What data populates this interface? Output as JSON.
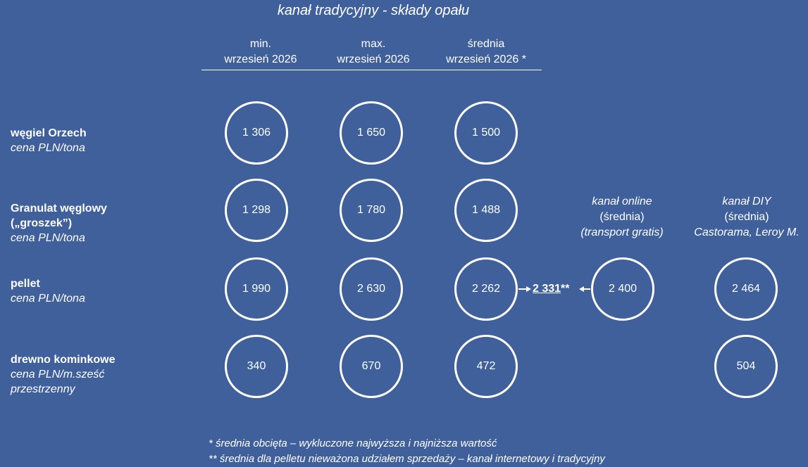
{
  "title": "kanał tradycyjny - składy opału",
  "columns": [
    {
      "line1": "min.",
      "line2": "wrzesień 2026"
    },
    {
      "line1": "max.",
      "line2": "wrzesień 2026"
    },
    {
      "line1": "średnia",
      "line2": "wrzesień 2026 *"
    }
  ],
  "side_columns": {
    "online": {
      "line1": "kanał online",
      "line2": "(średnia)",
      "line3": "(transport gratis)"
    },
    "diy": {
      "line1": "kanał DIY",
      "line2": "(średnia)",
      "line3": "Castorama, Leroy M."
    }
  },
  "rows": [
    {
      "name": "węgiel Orzech",
      "name2": "",
      "unit": "cena PLN/tona",
      "unit2": "",
      "min": "1 306",
      "max": "1 650",
      "avg": "1 500",
      "online": null,
      "diy": null
    },
    {
      "name": "Granulat węglowy",
      "name2": "(„groszek”)",
      "unit": "cena PLN/tona",
      "unit2": "",
      "min": "1 298",
      "max": "1 780",
      "avg": "1 488",
      "online": null,
      "diy": null
    },
    {
      "name": "pellet",
      "name2": "",
      "unit": "cena PLN/tona",
      "unit2": "",
      "min": "1 990",
      "max": "2 630",
      "avg": "2 262",
      "online": "2 400",
      "diy": "2 464"
    },
    {
      "name": "drewno kominkowe",
      "name2": "",
      "unit": "cena PLN/m.sześć",
      "unit2": "przestrzenny",
      "min": "340",
      "max": "670",
      "avg": "472",
      "online": null,
      "diy": "504"
    }
  ],
  "pellet_unweighted_avg": {
    "value": "2 331",
    "marker": "**"
  },
  "footnotes": [
    "* średnia obcięta – wykluczone najwyższa i najniższa wartość",
    "** średnia dla pelletu nieważona udziałem sprzedaży – kanał internetowy i tradycyjny"
  ],
  "chart_data": {
    "type": "table",
    "title": "kanał tradycyjny - składy opału",
    "columns": [
      "min. wrzesień 2026",
      "max. wrzesień 2026",
      "średnia wrzesień 2026 *",
      "kanał online (średnia) (transport gratis)",
      "kanał DIY (średnia) Castorama, Leroy M."
    ],
    "series": [
      {
        "name": "węgiel Orzech",
        "values": [
          1306,
          1650,
          1500,
          null,
          null
        ]
      },
      {
        "name": "Granulat węglowy („groszek”)",
        "values": [
          1298,
          1780,
          1488,
          null,
          null
        ]
      },
      {
        "name": "pellet",
        "values": [
          1990,
          2630,
          2262,
          2400,
          2464
        ]
      },
      {
        "name": "drewno kominkowe",
        "values": [
          340,
          670,
          472,
          null,
          504
        ]
      }
    ],
    "annotations": [
      "2 331**"
    ]
  }
}
